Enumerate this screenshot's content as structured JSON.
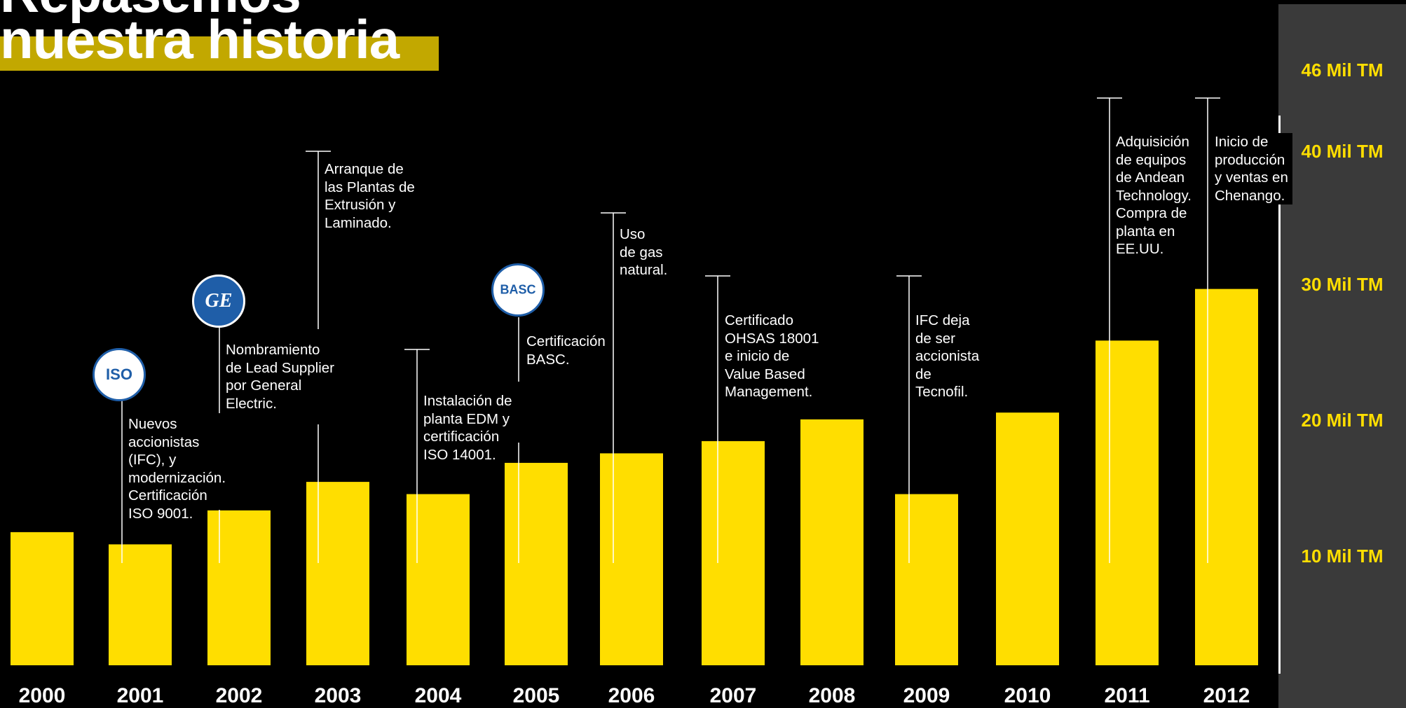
{
  "title": {
    "line1": "Repasemos",
    "line2": "nuestra historia"
  },
  "colors": {
    "bar": "#ffde00",
    "title_bar": "#c2a800",
    "axis_panel": "#3a3a3a",
    "tick_label": "#ffde00"
  },
  "chart_data": {
    "type": "bar",
    "categories": [
      "2000",
      "2001",
      "2002",
      "2003",
      "2004",
      "2005",
      "2006",
      "2007",
      "2008",
      "2009",
      "2010",
      "2011",
      "2012"
    ],
    "values": [
      9.8,
      8.9,
      11.4,
      13.5,
      12.6,
      14.9,
      15.6,
      16.5,
      18.1,
      12.6,
      18.6,
      23.9,
      27.7
    ],
    "unit": "Mil TM",
    "ylim": [
      0,
      46
    ],
    "yticks": [
      10,
      20,
      30,
      40,
      46
    ],
    "ytick_labels": [
      "10 Mil TM",
      "20 Mil TM",
      "30 Mil TM",
      "40 Mil TM",
      "46 Mil TM"
    ],
    "axis_position": "right",
    "grid": false,
    "legend": "none",
    "annotations": [
      {
        "year": "2001",
        "text": "Nuevos\naccionistas\n(IFC), y\nmodernización.\nCertificación\nISO 9001.",
        "icon": "iso-9001-badge-icon",
        "badge_text": "ISO"
      },
      {
        "year": "2002",
        "text": "Nombramiento\nde Lead Supplier\npor General\nElectric.",
        "icon": "general-electric-logo-icon",
        "badge_text": "GE"
      },
      {
        "year": "2003",
        "text": "Arranque de\nlas Plantas de\nExtrusión y\nLaminado."
      },
      {
        "year": "2004",
        "text": "Instalación de\nplanta EDM y\ncertificación\nISO 14001."
      },
      {
        "year": "2005",
        "text": "Certificación\nBASC.",
        "icon": "basc-logo-icon",
        "badge_text": "BASC"
      },
      {
        "year": "2006",
        "text": "Uso\nde gas\nnatural."
      },
      {
        "year": "2007",
        "text": "Certificado\nOHSAS 18001\ne inicio de\nValue Based\nManagement."
      },
      {
        "year": "2009",
        "text": "IFC deja\nde ser\naccionista\nde\nTecnofil."
      },
      {
        "year": "2011",
        "text": "Adquisición\nde equipos\nde Andean\nTechnology.\nCompra de\nplanta en\nEE.UU."
      },
      {
        "year": "2012",
        "text": "Inicio de\nproducción\ny ventas en\nChenango."
      }
    ]
  }
}
